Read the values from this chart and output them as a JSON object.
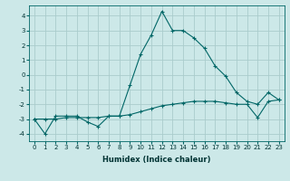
{
  "xlabel": "Humidex (Indice chaleur)",
  "ylabel": "",
  "background_color": "#cce8e8",
  "grid_color": "#aacccc",
  "line_color": "#006666",
  "xlim": [
    -0.5,
    23.5
  ],
  "ylim": [
    -4.5,
    4.7
  ],
  "yticks": [
    -4,
    -3,
    -2,
    -1,
    0,
    1,
    2,
    3,
    4
  ],
  "xticks": [
    0,
    1,
    2,
    3,
    4,
    5,
    6,
    7,
    8,
    9,
    10,
    11,
    12,
    13,
    14,
    15,
    16,
    17,
    18,
    19,
    20,
    21,
    22,
    23
  ],
  "line1_x": [
    0,
    1,
    2,
    3,
    4,
    5,
    6,
    7,
    8,
    9,
    10,
    11,
    12,
    13,
    14,
    15,
    16,
    17,
    18,
    19,
    20,
    21,
    22,
    23
  ],
  "line1_y": [
    -3.0,
    -4.0,
    -2.8,
    -2.8,
    -2.8,
    -3.2,
    -3.5,
    -2.8,
    -2.8,
    -0.7,
    1.4,
    2.7,
    4.3,
    3.0,
    3.0,
    2.5,
    1.8,
    0.6,
    -0.1,
    -1.2,
    -1.8,
    -2.0,
    -1.2,
    -1.7
  ],
  "line2_x": [
    0,
    1,
    2,
    3,
    4,
    5,
    6,
    7,
    8,
    9,
    10,
    11,
    12,
    13,
    14,
    15,
    16,
    17,
    18,
    19,
    20,
    21,
    22,
    23
  ],
  "line2_y": [
    -3.0,
    -3.0,
    -3.0,
    -2.9,
    -2.9,
    -2.9,
    -2.9,
    -2.8,
    -2.8,
    -2.7,
    -2.5,
    -2.3,
    -2.1,
    -2.0,
    -1.9,
    -1.8,
    -1.8,
    -1.8,
    -1.9,
    -2.0,
    -2.0,
    -2.9,
    -1.8,
    -1.7
  ],
  "tick_fontsize": 5,
  "xlabel_fontsize": 6,
  "xlabel_fontweight": "bold"
}
